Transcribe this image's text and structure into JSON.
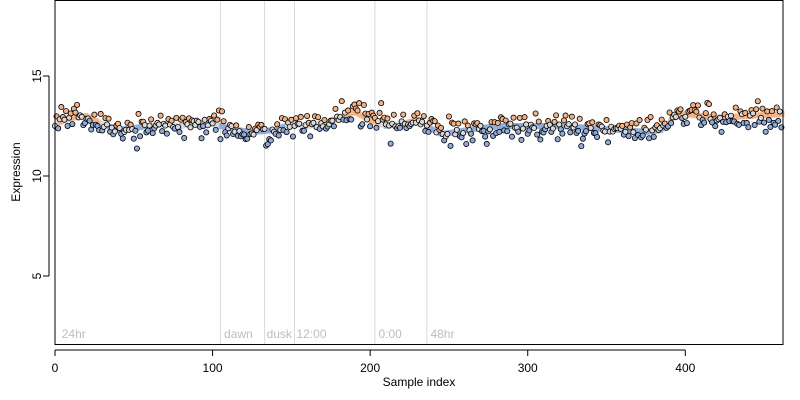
{
  "chart_data": {
    "type": "scatter",
    "xlabel": "Sample index",
    "ylabel": "Expression",
    "xlim": [
      0,
      462
    ],
    "ylim": [
      1.6,
      18.8
    ],
    "x_ticks": [
      0,
      100,
      200,
      300,
      400
    ],
    "y_ticks": [
      5,
      10,
      15
    ],
    "grid": false,
    "phase_lines": [
      105,
      133,
      152,
      203,
      236
    ],
    "phase_labels": [
      {
        "x": 3,
        "text": "24hr"
      },
      {
        "x": 106,
        "text": "dawn"
      },
      {
        "x": 133,
        "text": "dusk"
      },
      {
        "x": 152,
        "text": "12:00"
      },
      {
        "x": 204,
        "text": "0:00"
      },
      {
        "x": 237,
        "text": "48hr"
      }
    ],
    "colors": {
      "point_edge": "#000000",
      "fill_high": "#f4b183",
      "fill_low": "#8eaadb",
      "fill_mid": "#d9d9d9",
      "phase_line": "#d9d9d9",
      "phase_text": "#bdbdbd"
    },
    "trend_knots": [
      [
        0,
        12.6
      ],
      [
        10,
        12.9
      ],
      [
        20,
        13.0
      ],
      [
        30,
        12.6
      ],
      [
        40,
        12.3
      ],
      [
        50,
        12.4
      ],
      [
        60,
        12.5
      ],
      [
        70,
        12.6
      ],
      [
        80,
        12.5
      ],
      [
        95,
        12.7
      ],
      [
        105,
        12.5
      ],
      [
        115,
        12.3
      ],
      [
        125,
        12.2
      ],
      [
        140,
        12.3
      ],
      [
        150,
        12.6
      ],
      [
        160,
        12.5
      ],
      [
        170,
        12.6
      ],
      [
        180,
        12.9
      ],
      [
        190,
        13.2
      ],
      [
        200,
        12.8
      ],
      [
        210,
        12.5
      ],
      [
        220,
        12.6
      ],
      [
        230,
        12.8
      ],
      [
        238,
        12.4
      ],
      [
        245,
        12.1
      ],
      [
        255,
        12.2
      ],
      [
        270,
        12.4
      ],
      [
        285,
        12.5
      ],
      [
        300,
        12.5
      ],
      [
        320,
        12.5
      ],
      [
        340,
        12.4
      ],
      [
        360,
        12.3
      ],
      [
        375,
        12.2
      ],
      [
        385,
        12.3
      ],
      [
        392,
        12.9
      ],
      [
        400,
        13.1
      ],
      [
        420,
        12.9
      ],
      [
        440,
        13.0
      ],
      [
        462,
        13.1
      ]
    ],
    "n_points": 462,
    "noise_sd": 0.32,
    "seed": 7
  }
}
